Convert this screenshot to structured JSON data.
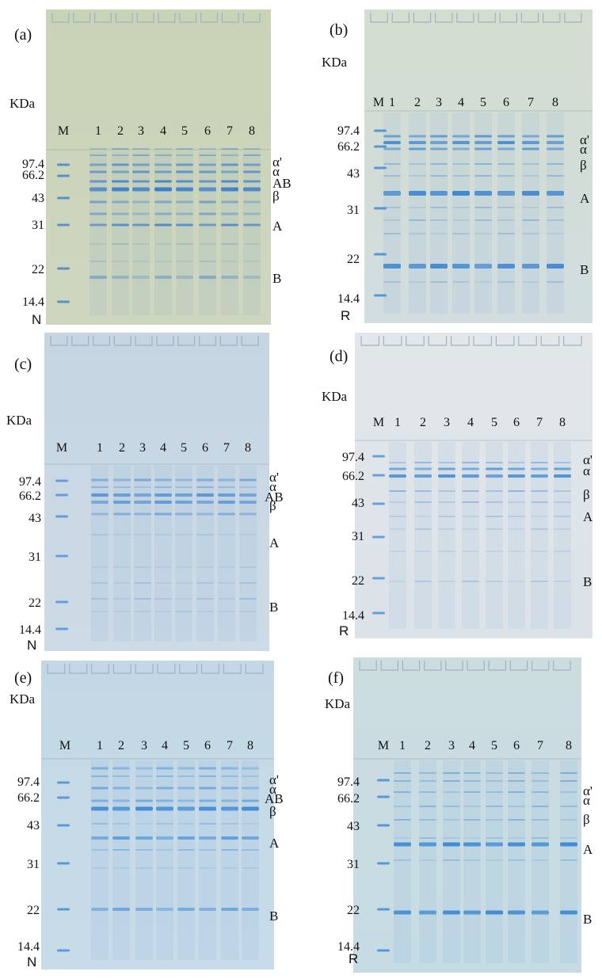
{
  "panels": [
    {
      "label": "(a)",
      "unit": "KDa",
      "marker_lane": "M",
      "lanes": [
        "1",
        "2",
        "3",
        "4",
        "5",
        "6",
        "7",
        "8"
      ],
      "mw": [
        "97.4",
        "66.2",
        "43",
        "31",
        "22",
        "14.4"
      ],
      "bands": [
        "α'",
        "α",
        "AB",
        "β",
        "A",
        "B"
      ],
      "condition": "N",
      "colors": {
        "bg_top": "#c9d3b6",
        "bg_bottom": "#cfd6c0",
        "band": "#3f7fc9"
      }
    },
    {
      "label": "(b)",
      "unit": "KDa",
      "marker_lane": "M",
      "lanes": [
        "1",
        "2",
        "3",
        "4",
        "5",
        "6",
        "7",
        "8"
      ],
      "mw": [
        "97.4",
        "66.2",
        "43",
        "31",
        "22",
        "14.4"
      ],
      "bands": [
        "α'",
        "α",
        "β",
        "A",
        "B"
      ],
      "condition": "R",
      "colors": {
        "bg_top": "#d3ddcf",
        "bg_bottom": "#d2dde0",
        "band": "#3b86cf"
      }
    },
    {
      "label": "(c)",
      "unit": "KDa",
      "marker_lane": "M",
      "lanes": [
        "1",
        "2",
        "3",
        "4",
        "5",
        "6",
        "7",
        "8"
      ],
      "mw": [
        "97.4",
        "66.2",
        "43",
        "31",
        "22",
        "14.4"
      ],
      "bands": [
        "α'",
        "α",
        "AB",
        "β",
        "A",
        "B"
      ],
      "condition": "N",
      "colors": {
        "bg_top": "#c5d5e2",
        "bg_bottom": "#cddbe6",
        "band": "#4c8ed3"
      }
    },
    {
      "label": "(d)",
      "unit": "KDa",
      "marker_lane": "M",
      "lanes": [
        "1",
        "2",
        "3",
        "4",
        "5",
        "6",
        "7",
        "8"
      ],
      "mw": [
        "97.4",
        "66.2",
        "43",
        "31",
        "22",
        "14.4"
      ],
      "bands": [
        "α'",
        "α",
        "β",
        "A",
        "B"
      ],
      "condition": "R",
      "colors": {
        "bg_top": "#e3e7ea",
        "bg_bottom": "#dbe2e8",
        "band": "#4b8fd6"
      }
    },
    {
      "label": "(e)",
      "unit": "KDa",
      "marker_lane": "M",
      "lanes": [
        "1",
        "2",
        "3",
        "4",
        "5",
        "6",
        "7",
        "8"
      ],
      "mw": [
        "97.4",
        "66.2",
        "43",
        "31",
        "22",
        "14.4"
      ],
      "bands": [
        "α'",
        "α",
        "AB",
        "β",
        "A",
        "B"
      ],
      "condition": "N",
      "colors": {
        "bg_top": "#c3d8e6",
        "bg_bottom": "#c8dbe8",
        "band": "#3f8ad6"
      }
    },
    {
      "label": "(f)",
      "unit": "KDa",
      "marker_lane": "M",
      "lanes": [
        "1",
        "2",
        "3",
        "4",
        "5",
        "6",
        "7",
        "8"
      ],
      "mw": [
        "97.4",
        "66.2",
        "43",
        "31",
        "22",
        "14.4"
      ],
      "bands": [
        "α'",
        "α",
        "β",
        "A",
        "B"
      ],
      "condition": "R",
      "colors": {
        "bg_top": "#ccdde0",
        "bg_bottom": "#c6dbe4",
        "band": "#3b88d2"
      }
    }
  ]
}
